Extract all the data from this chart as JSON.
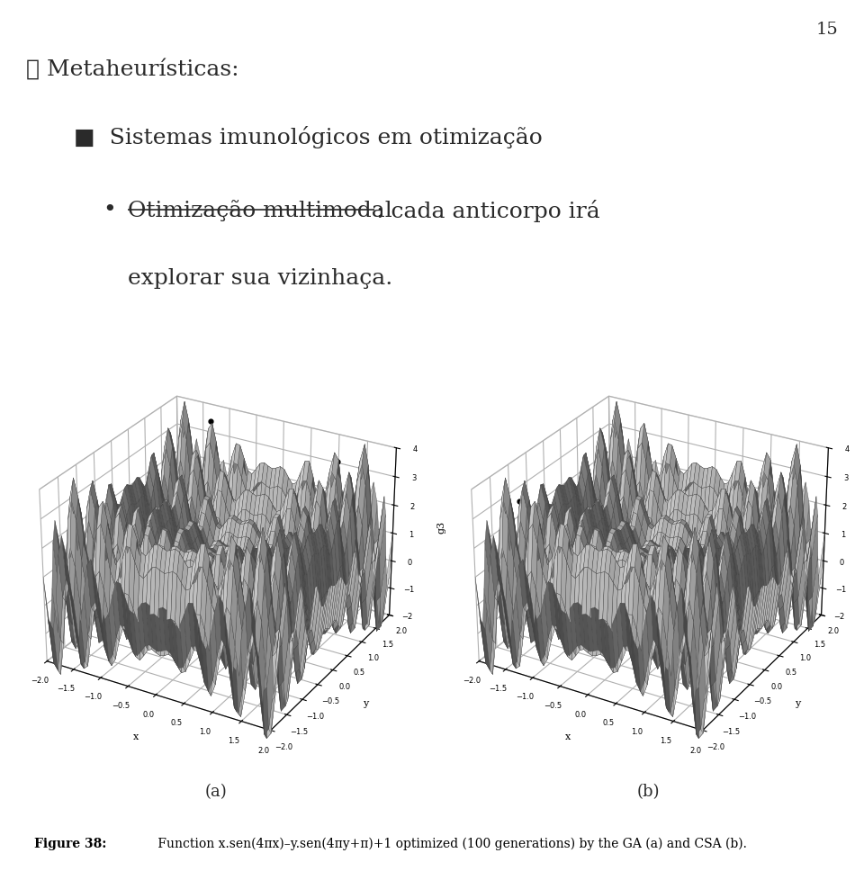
{
  "title_number": "15",
  "page_num_fontsize": 14,
  "bullet1": "➤ Metaheurísticas:",
  "bullet2_marker": "■",
  "bullet2_text": "Sistemas imunológicos em otimização",
  "bullet3_marker": "•",
  "bullet3_underline": "Otimização multimodal",
  "bullet3_rest1": ": cada anticorpo irá",
  "bullet3_rest2": "explorar sua vizinhaça.",
  "sub_label_a": "(a)",
  "sub_label_b": "(b)",
  "g3_label": "g3",
  "figure_caption_bold": "Figure 38:",
  "figure_caption_rest": " Function x.sen(4πx)–y.sen(4πy+π)+1 optimized (100 generations) by the GA (a) and CSA (b).",
  "background_color": "#ffffff",
  "text_color": "#2a2a2a",
  "surface_color": "#cccccc",
  "surface_edge_color": "#444444",
  "zlim": [
    -2,
    4
  ],
  "xlim": [
    -2,
    2
  ],
  "ylim": [
    -2,
    2
  ],
  "n_points": 55,
  "elev": 28,
  "azim": -60,
  "font_size_main": 18,
  "font_size_caption": 10,
  "font_size_axis": 8
}
